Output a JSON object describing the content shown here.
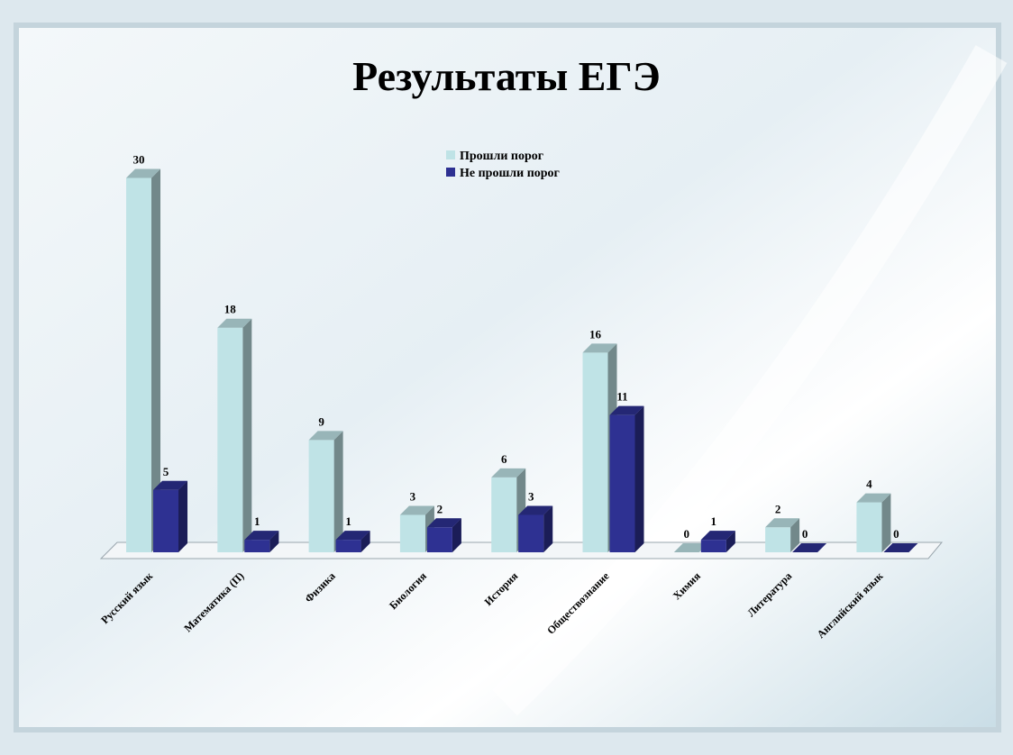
{
  "chart_data": {
    "type": "bar3d",
    "title": "Результаты ЕГЭ",
    "categories": [
      "Русский язык",
      "Математика (П)",
      "Физика",
      "Биология",
      "История",
      "Обществознание",
      "Химия",
      "Литература",
      "Английский язык"
    ],
    "series": [
      {
        "name": "Прошли порог",
        "color": "#bfe3e6",
        "values": [
          30,
          18,
          9,
          3,
          6,
          16,
          0,
          2,
          4
        ]
      },
      {
        "name": "Не прошли порог",
        "color": "#2e3192",
        "values": [
          5,
          1,
          1,
          2,
          3,
          11,
          1,
          0,
          0
        ]
      }
    ]
  }
}
